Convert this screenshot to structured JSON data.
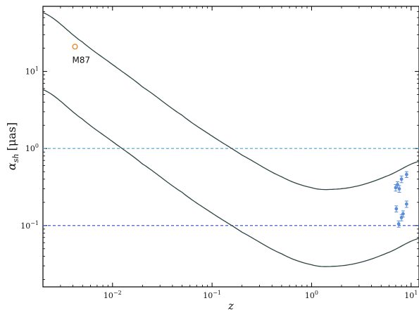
{
  "chart_data": {
    "type": "scatter",
    "xlabel": "z",
    "ylabel_main": "α",
    "ylabel_sub": "sh",
    "ylabel_unit": "[μas]",
    "x_scale": "log",
    "y_scale": "log",
    "xlim": [
      0.002,
      12
    ],
    "ylim": [
      0.016,
      70
    ],
    "x_ticks": [
      {
        "value": 0.01,
        "base": "10",
        "exp": "−2"
      },
      {
        "value": 0.1,
        "base": "10",
        "exp": "−1"
      },
      {
        "value": 1,
        "base": "10",
        "exp": "0"
      },
      {
        "value": 10,
        "base": "10",
        "exp": "1"
      }
    ],
    "y_ticks": [
      {
        "value": 0.1,
        "base": "10",
        "exp": "−1"
      },
      {
        "value": 1,
        "base": "10",
        "exp": "0"
      },
      {
        "value": 10,
        "base": "10",
        "exp": "1"
      }
    ],
    "hlines": [
      {
        "y": 1.0,
        "color": "#4fa3cf",
        "style": "dashed"
      },
      {
        "y": 0.1,
        "color": "#4a5fd4",
        "style": "dashed"
      }
    ],
    "curves": [
      {
        "color": "#2f4545",
        "points": [
          [
            0.002,
            58
          ],
          [
            0.005,
            24
          ],
          [
            0.01,
            12.3
          ],
          [
            0.02,
            6.3
          ],
          [
            0.05,
            2.7
          ],
          [
            0.1,
            1.45
          ],
          [
            0.2,
            0.82
          ],
          [
            0.5,
            0.43
          ],
          [
            1,
            0.31
          ],
          [
            1.6,
            0.295
          ],
          [
            3,
            0.33
          ],
          [
            6,
            0.45
          ],
          [
            12,
            0.68
          ]
        ]
      },
      {
        "color": "#2f4545",
        "points": [
          [
            0.002,
            5.8
          ],
          [
            0.005,
            2.4
          ],
          [
            0.01,
            1.23
          ],
          [
            0.02,
            0.63
          ],
          [
            0.05,
            0.27
          ],
          [
            0.1,
            0.145
          ],
          [
            0.2,
            0.082
          ],
          [
            0.5,
            0.043
          ],
          [
            1,
            0.031
          ],
          [
            1.6,
            0.0295
          ],
          [
            3,
            0.033
          ],
          [
            6,
            0.045
          ],
          [
            12,
            0.068
          ]
        ]
      }
    ],
    "highlight_point": {
      "label": "M87",
      "x": 0.0042,
      "y": 21,
      "color": "#e8892b"
    },
    "points": [
      {
        "x": 7.0,
        "y": 0.31,
        "err": 0.03
      },
      {
        "x": 7.3,
        "y": 0.34,
        "err": 0.03
      },
      {
        "x": 7.6,
        "y": 0.3,
        "err": 0.03
      },
      {
        "x": 8.0,
        "y": 0.4,
        "err": 0.04
      },
      {
        "x": 9.0,
        "y": 0.46,
        "err": 0.04
      },
      {
        "x": 7.1,
        "y": 0.165,
        "err": 0.015
      },
      {
        "x": 7.5,
        "y": 0.105,
        "err": 0.01
      },
      {
        "x": 8.0,
        "y": 0.127,
        "err": 0.012
      },
      {
        "x": 8.3,
        "y": 0.142,
        "err": 0.013
      },
      {
        "x": 9.0,
        "y": 0.19,
        "err": 0.018
      }
    ],
    "points_color": "#5b8fd9"
  }
}
